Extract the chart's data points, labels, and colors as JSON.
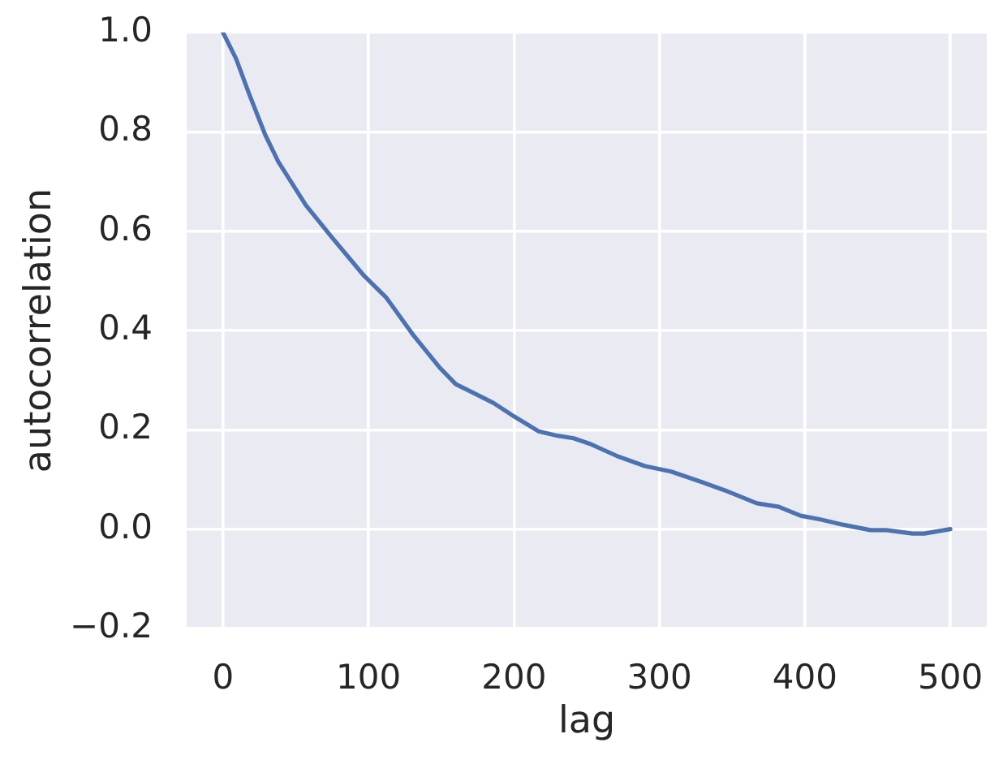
{
  "chart_data": {
    "type": "line",
    "xlabel": "lag",
    "ylabel": "autocorrelation",
    "x": [
      0,
      9,
      18,
      29,
      38,
      57,
      75,
      97,
      112,
      131,
      149,
      160,
      171,
      186,
      200,
      217,
      230,
      241,
      252,
      271,
      290,
      308,
      330,
      345,
      367,
      382,
      397,
      410,
      426,
      445,
      456,
      474,
      482,
      500
    ],
    "series": [
      {
        "color": "#4c72b0",
        "values": [
          1.0,
          0.947,
          0.876,
          0.794,
          0.74,
          0.652,
          0.587,
          0.51,
          0.467,
          0.39,
          0.325,
          0.292,
          0.276,
          0.254,
          0.227,
          0.197,
          0.188,
          0.183,
          0.172,
          0.147,
          0.127,
          0.116,
          0.094,
          0.078,
          0.052,
          0.045,
          0.027,
          0.02,
          0.009,
          -0.002,
          -0.002,
          -0.009,
          -0.009,
          0.0
        ]
      }
    ],
    "xlim": [
      -25,
      525
    ],
    "ylim": [
      -0.2,
      1.0
    ],
    "xticks": [
      0,
      100,
      200,
      300,
      400,
      500
    ],
    "yticks": [
      {
        "value": -0.2,
        "label": "−0.2"
      },
      {
        "value": 0,
        "label": "0.0"
      },
      0.2,
      0.4,
      0.6,
      0.8,
      {
        "value": 1,
        "label": "1.0"
      }
    ],
    "grid": true,
    "marker": "none",
    "line_style": "solid"
  }
}
